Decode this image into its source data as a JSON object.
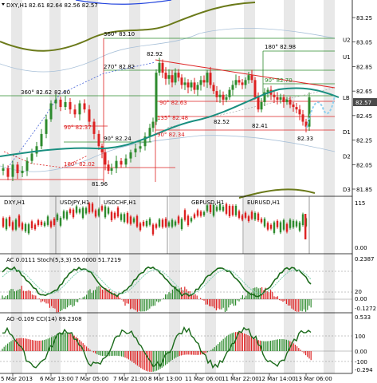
{
  "header": {
    "symbol": "DXY,H1",
    "ohlc": "82.61 82.64 82.56 82.57"
  },
  "main": {
    "price_levels": [
      "83.25",
      "83.05",
      "82.85",
      "82.65",
      "82.45",
      "82.25",
      "82.05",
      "81.85"
    ],
    "current_price": "82.57",
    "level_labels": [
      {
        "name": "U2",
        "price": 83.07
      },
      {
        "name": "U1",
        "price": 82.93
      },
      {
        "name": "LB",
        "price": 82.6
      },
      {
        "name": "D1",
        "price": 82.32
      },
      {
        "name": "D2",
        "price": 82.12
      },
      {
        "name": "D3",
        "price": 81.85
      }
    ],
    "annotations": [
      {
        "text": "360° 83.10"
      },
      {
        "text": "180° 82.98"
      },
      {
        "text": "270° 82.82"
      },
      {
        "text": "82.92"
      },
      {
        "text": "360° 82.62"
      },
      {
        "text": "82.60"
      },
      {
        "text": "90° 82.63"
      },
      {
        "text": "90° 82.70"
      },
      {
        "text": "135° 82.48"
      },
      {
        "text": "90° 82.37"
      },
      {
        "text": "82.52"
      },
      {
        "text": "82.41"
      },
      {
        "text": "90° 82.34"
      },
      {
        "text": "82.33"
      },
      {
        "text": "90° 82.24"
      },
      {
        "text": "180° 82.02"
      },
      {
        "text": "81.96"
      }
    ]
  },
  "strength_panel": {
    "labels": [
      "DXY,H1",
      "USDJPY,H1",
      "USDCHF,H1",
      "GBPUSD,H1",
      "EURUSD,H1"
    ],
    "scale": [
      "115",
      "0.00"
    ]
  },
  "ac_panel": {
    "title": "AC 0.0111  Stoch(5,3,3) 55.0000 51.7219",
    "scale": [
      "0.2387",
      "20",
      "0.00",
      "-0.1272"
    ]
  },
  "ao_panel": {
    "title": "AO -0.109  CCI(14) 89.2308",
    "scale": [
      "0.533",
      "100",
      "0.00",
      "-100",
      "-0.294"
    ]
  },
  "time_axis": [
    "5 Mar 2013",
    "6 Mar 13:00",
    "7 Mar 05:00",
    "7 Mar 21:00",
    "8 Mar 13:00",
    "11 Mar 06:00",
    "11 Mar 22:00",
    "12 Mar 14:00",
    "13 Mar 06:00"
  ],
  "colors": {
    "bull": "#2e8b2e",
    "bear": "#dd2222",
    "trend": "#1a8f80",
    "band": "#6b7a1a",
    "grid_shade": "#e8e8e8",
    "price_tag": "#4a4a4a"
  }
}
